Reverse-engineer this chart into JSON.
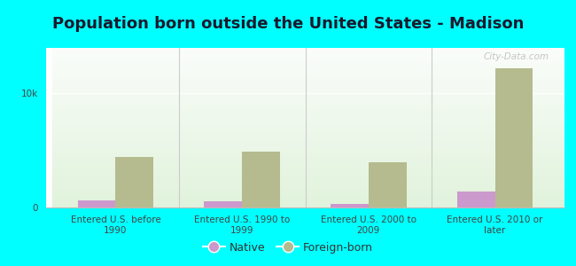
{
  "title": "Population born outside the United States - Madison",
  "categories": [
    "Entered U.S. before\n1990",
    "Entered U.S. 1990 to\n1999",
    "Entered U.S. 2000 to\n2009",
    "Entered U.S. 2010 or\nlater"
  ],
  "native_values": [
    600,
    550,
    300,
    1400
  ],
  "foreign_values": [
    4400,
    4900,
    4000,
    12200
  ],
  "native_color": "#cc99cc",
  "foreign_color": "#b5bb8e",
  "background_color": "#00ffff",
  "ylabel_tick": "10k",
  "ytick_val": 10000,
  "ylim": [
    0,
    14000
  ],
  "bar_width": 0.3,
  "legend_native": "Native",
  "legend_foreign": "Foreign-born",
  "title_fontsize": 13,
  "tick_fontsize": 7.5,
  "legend_fontsize": 9,
  "watermark": "City-Data.com"
}
